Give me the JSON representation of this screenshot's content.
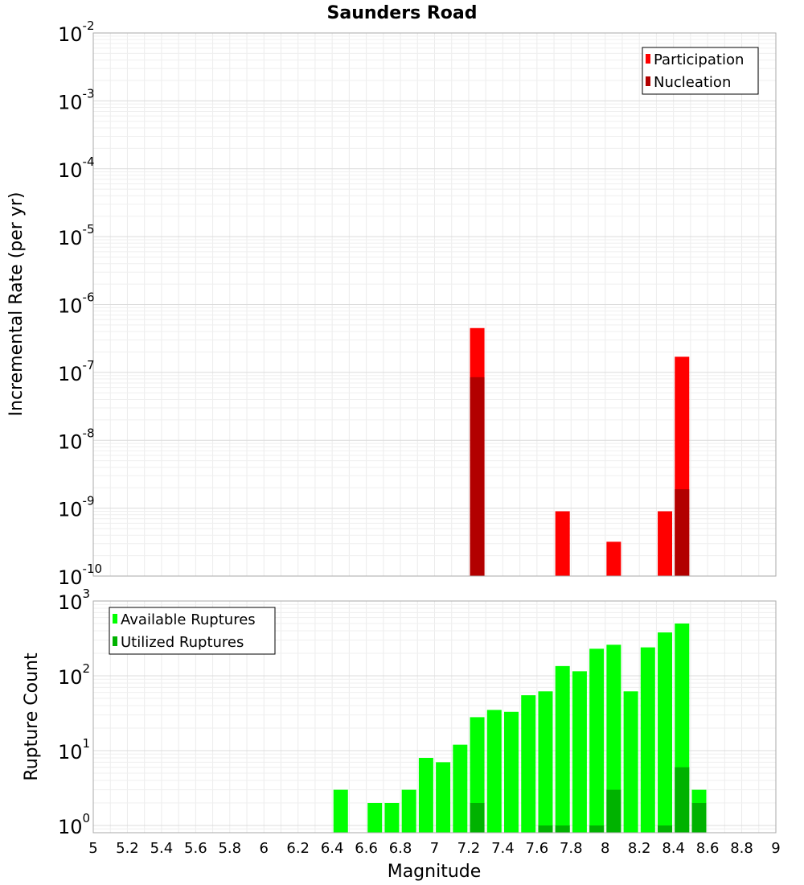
{
  "chart_data": {
    "type": "bar",
    "title": "Saunders Road",
    "xlabel": "Magnitude",
    "x_range": [
      5,
      9
    ],
    "x_ticks": [
      "5",
      "5.2",
      "5.4",
      "5.6",
      "5.8",
      "6",
      "6.2",
      "6.4",
      "6.6",
      "6.8",
      "7",
      "7.2",
      "7.4",
      "7.6",
      "7.8",
      "8",
      "8.2",
      "8.4",
      "8.6",
      "8.8",
      "9"
    ],
    "panels": [
      {
        "name": "rates",
        "ylabel": "Incremental Rate (per yr)",
        "yscale": "log",
        "ylim": [
          1e-10,
          0.01
        ],
        "y_ticks": [
          {
            "base": "10",
            "exp": "-2"
          },
          {
            "base": "10",
            "exp": "-3"
          },
          {
            "base": "10",
            "exp": "-4"
          },
          {
            "base": "10",
            "exp": "-5"
          },
          {
            "base": "10",
            "exp": "-6"
          },
          {
            "base": "10",
            "exp": "-7"
          },
          {
            "base": "10",
            "exp": "-8"
          },
          {
            "base": "10",
            "exp": "-9"
          },
          {
            "base": "10",
            "exp": "-10"
          }
        ],
        "legend_position": "top-right",
        "series": [
          {
            "name": "Participation",
            "color": "#ff0000",
            "points": [
              [
                7.25,
                4.5e-07
              ],
              [
                7.75,
                9e-10
              ],
              [
                8.05,
                3.2e-10
              ],
              [
                8.35,
                9e-10
              ],
              [
                8.45,
                1.7e-07
              ]
            ]
          },
          {
            "name": "Nucleation",
            "color": "#b20000",
            "points": [
              [
                7.25,
                8.5e-08
              ],
              [
                8.45,
                1.9e-09
              ]
            ]
          }
        ]
      },
      {
        "name": "counts",
        "ylabel": "Rupture Count",
        "yscale": "log",
        "ylim": [
          0.8,
          1000
        ],
        "y_ticks": [
          {
            "base": "10",
            "exp": "3"
          },
          {
            "base": "10",
            "exp": "2"
          },
          {
            "base": "10",
            "exp": "1"
          },
          {
            "base": "10",
            "exp": "0"
          }
        ],
        "legend_position": "top-left",
        "series": [
          {
            "name": "Available Ruptures",
            "color": "#00ff00",
            "points": [
              [
                6.45,
                3
              ],
              [
                6.65,
                2
              ],
              [
                6.75,
                2
              ],
              [
                6.85,
                3
              ],
              [
                6.95,
                8
              ],
              [
                7.05,
                7
              ],
              [
                7.15,
                12
              ],
              [
                7.25,
                28
              ],
              [
                7.35,
                35
              ],
              [
                7.45,
                33
              ],
              [
                7.55,
                55
              ],
              [
                7.65,
                62
              ],
              [
                7.75,
                135
              ],
              [
                7.85,
                115
              ],
              [
                7.95,
                230
              ],
              [
                8.05,
                260
              ],
              [
                8.15,
                62
              ],
              [
                8.25,
                240
              ],
              [
                8.35,
                380
              ],
              [
                8.45,
                500
              ],
              [
                8.55,
                3
              ]
            ]
          },
          {
            "name": "Utilized Ruptures",
            "color": "#00b200",
            "points": [
              [
                7.25,
                2
              ],
              [
                7.65,
                1
              ],
              [
                7.75,
                1
              ],
              [
                7.95,
                1
              ],
              [
                8.05,
                3
              ],
              [
                8.35,
                1
              ],
              [
                8.45,
                6
              ],
              [
                8.55,
                2
              ]
            ]
          }
        ]
      }
    ]
  }
}
